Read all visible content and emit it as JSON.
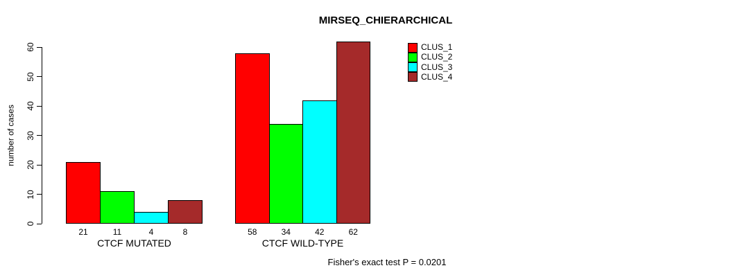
{
  "chart_data": {
    "type": "bar",
    "title": "MIRSEQ_CHIERARCHICAL",
    "xlabel": "",
    "ylabel": "number of cases",
    "ylim": [
      0,
      60
    ],
    "yticks": [
      0,
      10,
      20,
      30,
      40,
      50,
      60
    ],
    "categories": [
      "CTCF MUTATED",
      "CTCF WILD-TYPE"
    ],
    "series": [
      {
        "name": "CLUS_1",
        "color": "#FF0000",
        "values": [
          21,
          58
        ]
      },
      {
        "name": "CLUS_2",
        "color": "#00FF00",
        "values": [
          11,
          34
        ]
      },
      {
        "name": "CLUS_3",
        "color": "#00FFFF",
        "values": [
          4,
          42
        ]
      },
      {
        "name": "CLUS_4",
        "color": "#A52A2A",
        "values": [
          8,
          62
        ]
      }
    ],
    "bar_value_labels": [
      [
        "21",
        "11",
        "4",
        "8"
      ],
      [
        "58",
        "34",
        "42",
        "62"
      ]
    ],
    "legend_position": "top-right",
    "grid": false,
    "annotation": "Fisher's exact test P = 0.0201"
  }
}
